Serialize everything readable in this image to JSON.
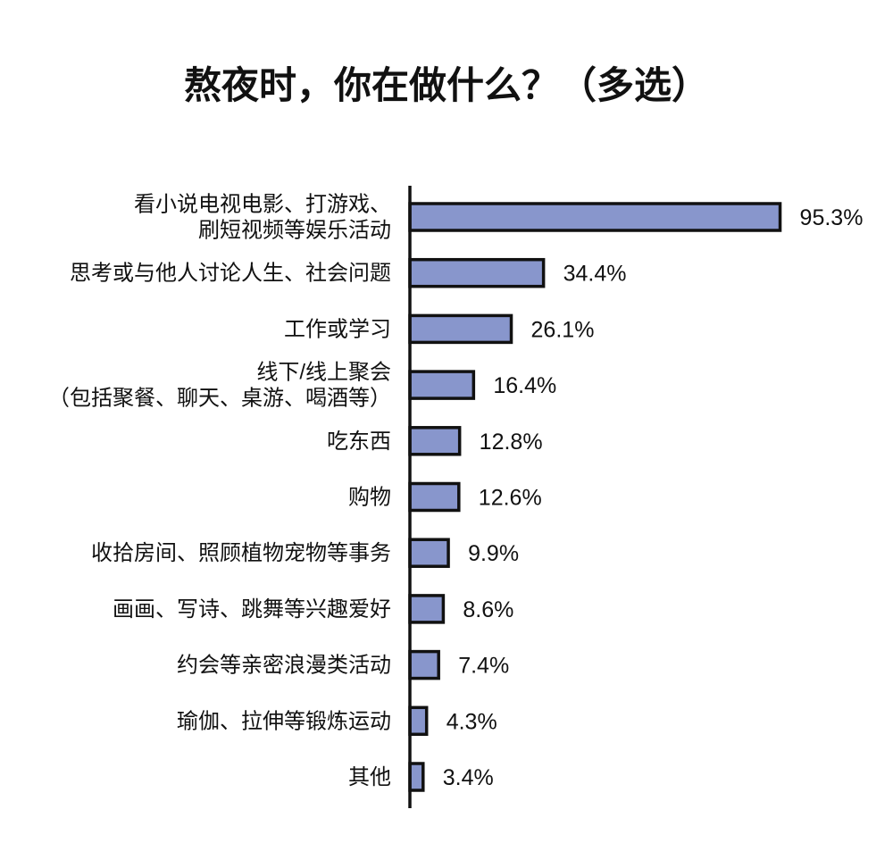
{
  "chart_data": {
    "type": "bar",
    "orientation": "horizontal",
    "title": "熬夜时，你在做什么？（多选）",
    "xlabel": "",
    "ylabel": "",
    "grid": false,
    "xlim": [
      0,
      100
    ],
    "categories": [
      [
        "看小说电视电影、打游戏、",
        "刷短视频等娱乐活动"
      ],
      [
        "思考或与他人讨论人生、社会问题"
      ],
      [
        "工作或学习"
      ],
      [
        "线下/线上聚会",
        "（包括聚餐、聊天、桌游、喝酒等）"
      ],
      [
        "吃东西"
      ],
      [
        "购物"
      ],
      [
        "收拾房间、照顾植物宠物等事务"
      ],
      [
        "画画、写诗、跳舞等兴趣爱好"
      ],
      [
        "约会等亲密浪漫类活动"
      ],
      [
        "瑜伽、拉伸等锻炼运动"
      ],
      [
        "其他"
      ]
    ],
    "values": [
      95.3,
      34.4,
      26.1,
      16.4,
      12.8,
      12.6,
      9.9,
      8.6,
      7.4,
      4.3,
      3.4
    ],
    "value_labels": [
      "95.3%",
      "34.4%",
      "26.1%",
      "16.4%",
      "12.8%",
      "12.6%",
      "9.9%",
      "8.6%",
      "7.4%",
      "4.3%",
      "3.4%"
    ],
    "colors": {
      "bar_fill": "#8896cc",
      "bar_stroke": "#111111",
      "axis": "#111111",
      "text": "#111111"
    }
  }
}
